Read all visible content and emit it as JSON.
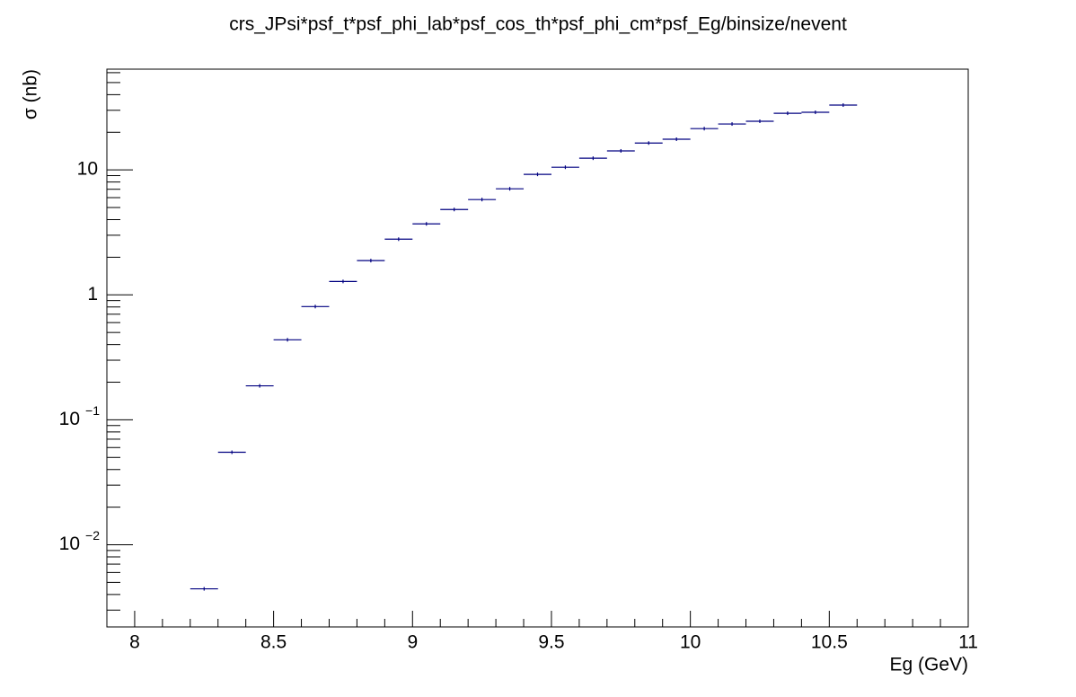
{
  "chart_data": {
    "type": "histogram",
    "title": "crs_JPsi*psf_t*psf_phi_lab*psf_cos_th*psf_phi_cm*psf_Eg/binsize/nevent",
    "x_label": "Eg (GeV)",
    "y_label": "σ (nb)",
    "bins": [
      8.2,
      8.3,
      8.4,
      8.5,
      8.6,
      8.7,
      8.8,
      8.9,
      9.0,
      9.1,
      9.2,
      9.3,
      9.4,
      9.5,
      9.6,
      9.7,
      9.8,
      9.9,
      10.0,
      10.1,
      10.2,
      10.3,
      10.4,
      10.5,
      10.6
    ],
    "values": [
      0.00444,
      0.055,
      0.187,
      0.437,
      0.806,
      1.28,
      1.88,
      2.79,
      3.7,
      4.82,
      5.79,
      7.06,
      9.21,
      10.5,
      12.4,
      14.2,
      16.4,
      17.6,
      21.4,
      23.3,
      24.5,
      28.4,
      28.9,
      33.0
    ],
    "color": "#000080",
    "xlim": [
      7.9,
      11
    ],
    "ylim": [
      0.0022,
      64
    ],
    "ylog": true,
    "xticks": [
      8,
      8.5,
      9,
      9.5,
      10,
      10.5,
      11
    ],
    "xminorticks": [
      8.1,
      8.2,
      8.3,
      8.4,
      8.6,
      8.7,
      8.8,
      8.9,
      9.1,
      9.2,
      9.3,
      9.4,
      9.6,
      9.7,
      9.8,
      9.9,
      10.1,
      10.2,
      10.3,
      10.4,
      10.6,
      10.7,
      10.8,
      10.9
    ],
    "yticks": [
      {
        "value": 0.01,
        "label": "10",
        "exponent": "−2"
      },
      {
        "value": 0.1,
        "label": "10",
        "exponent": "−1"
      },
      1,
      10
    ],
    "yminorticks": [
      0.003,
      0.004,
      0.005,
      0.006,
      0.007,
      0.008,
      0.009,
      0.02,
      0.03,
      0.04,
      0.05,
      0.06,
      0.07,
      0.08,
      0.09,
      0.2,
      0.3,
      0.4,
      0.5,
      0.6,
      0.7,
      0.8,
      0.9,
      2,
      3,
      4,
      5,
      6,
      7,
      8,
      9,
      20,
      30,
      40,
      50,
      60
    ],
    "grid": false
  }
}
